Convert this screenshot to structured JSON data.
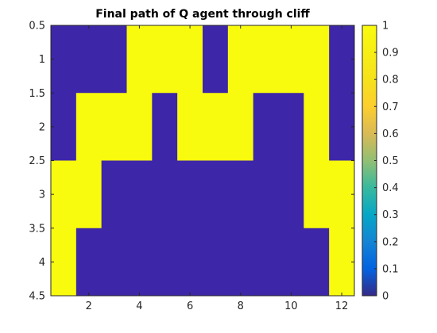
{
  "chart_data": {
    "type": "heatmap",
    "title": "Final path of Q agent through cliff",
    "xlabel": "",
    "ylabel": "",
    "xlim": [
      0.5,
      12.5
    ],
    "ylim": [
      0.5,
      4.5
    ],
    "y_direction": "reversed",
    "x_ticks": [
      2,
      4,
      6,
      8,
      10,
      12
    ],
    "x_tick_labels": [
      "2",
      "4",
      "6",
      "8",
      "10",
      "12"
    ],
    "y_ticks": [
      0.5,
      1,
      1.5,
      2,
      2.5,
      3,
      3.5,
      4,
      4.5
    ],
    "y_tick_labels": [
      "0.5",
      "1",
      "1.5",
      "2",
      "2.5",
      "3",
      "3.5",
      "4",
      "4.5"
    ],
    "grid": false,
    "colormap": "parula",
    "colorbar": {
      "range": [
        0,
        1
      ],
      "ticks": [
        0,
        0.1,
        0.2,
        0.3,
        0.4,
        0.5,
        0.6,
        0.7,
        0.8,
        0.9,
        1
      ],
      "tick_labels": [
        "0",
        "0.1",
        "0.2",
        "0.3",
        "0.4",
        "0.5",
        "0.6",
        "0.7",
        "0.8",
        "0.9",
        "1"
      ],
      "placement": "right"
    },
    "x_values": [
      1,
      2,
      3,
      4,
      5,
      6,
      7,
      8,
      9,
      10,
      11,
      12
    ],
    "y_values": [
      1,
      2,
      3,
      4
    ],
    "matrix": [
      [
        0,
        0,
        0,
        1,
        1,
        1,
        0,
        1,
        1,
        1,
        1,
        0
      ],
      [
        0,
        1,
        1,
        1,
        0,
        1,
        1,
        1,
        0,
        0,
        1,
        0
      ],
      [
        1,
        1,
        0,
        0,
        0,
        0,
        0,
        0,
        0,
        0,
        1,
        1
      ],
      [
        1,
        0,
        0,
        0,
        0,
        0,
        0,
        0,
        0,
        0,
        0,
        1
      ]
    ],
    "colors": {
      "low": "#3e26a8",
      "high": "#f9fb0e"
    }
  }
}
